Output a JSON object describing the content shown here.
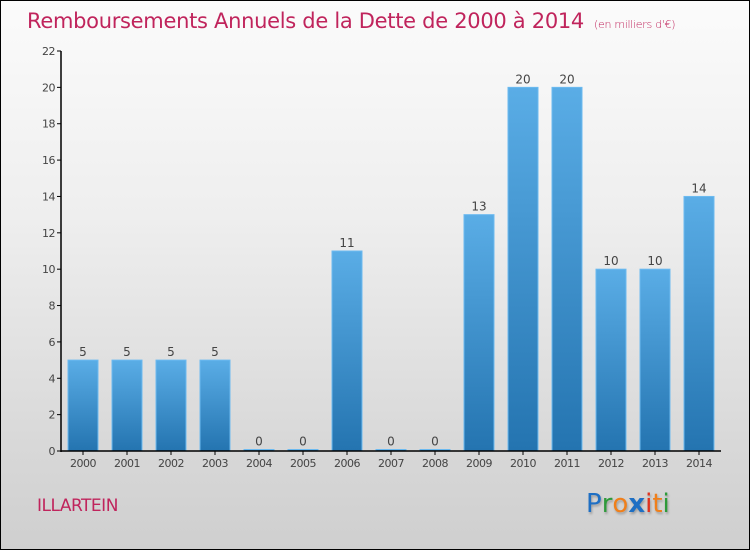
{
  "title": {
    "main": "Remboursements Annuels de la Dette de 2000 à 2014",
    "unit": "(en milliers d'€)"
  },
  "commune": "ILLARTEIN",
  "logo": {
    "letters": [
      {
        "char": "P",
        "color": "#1e6fc4"
      },
      {
        "char": "r",
        "color": "#2e9a3a"
      },
      {
        "char": "o",
        "color": "#f07f1a"
      },
      {
        "char": "x",
        "color": "#1e6fc4"
      },
      {
        "char": "i",
        "color": "#e0321e"
      },
      {
        "char": "t",
        "color": "#f07f1a"
      },
      {
        "char": "i",
        "color": "#2e9a3a"
      }
    ]
  },
  "colors": {
    "accent": "#c0245c",
    "bar_top": "#5aade6",
    "bar_bottom": "#2474b0",
    "bar_edge": "#6cbaf0"
  },
  "chart_data": {
    "type": "bar",
    "title": "Remboursements Annuels de la Dette de 2000 à 2014",
    "subtitle": "(en milliers d'€)",
    "xlabel": "",
    "ylabel": "",
    "categories": [
      "2000",
      "2001",
      "2002",
      "2003",
      "2004",
      "2005",
      "2006",
      "2007",
      "2008",
      "2009",
      "2010",
      "2011",
      "2012",
      "2013",
      "2014"
    ],
    "values": [
      5,
      5,
      5,
      5,
      0,
      0,
      11,
      0,
      0,
      13,
      20,
      20,
      10,
      10,
      14
    ],
    "ylim": [
      0,
      22
    ],
    "yticks": [
      0,
      2,
      4,
      6,
      8,
      10,
      12,
      14,
      16,
      18,
      20,
      22
    ],
    "grid": false,
    "legend": "none",
    "data_labels": true
  }
}
